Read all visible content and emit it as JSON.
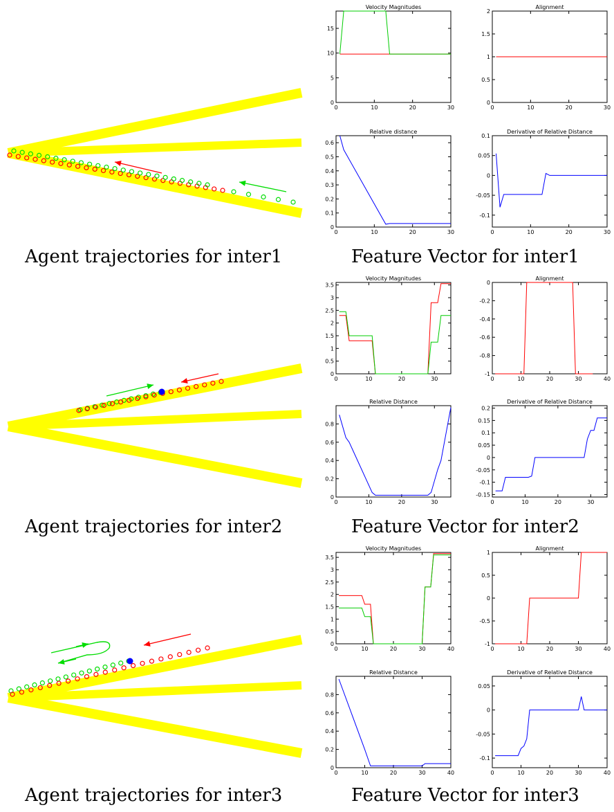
{
  "rows": [
    {
      "left_caption": "Agent trajectories for inter1",
      "right_caption": "Feature Vector for inter1",
      "scene": {
        "road_color": "#ffff00",
        "agent1_color": "#ff0000",
        "agent2_color": "#00dd00",
        "marker_color": "#0000ff"
      }
    },
    {
      "left_caption": "Agent trajectories for inter2",
      "right_caption": "Feature Vector for inter2",
      "scene": {
        "road_color": "#ffff00",
        "agent1_color": "#ff0000",
        "agent2_color": "#00dd00",
        "marker_color": "#0000ff"
      }
    },
    {
      "left_caption": "Agent trajectories for inter3",
      "right_caption": "Feature Vector for inter3",
      "scene": {
        "road_color": "#ffff00",
        "agent1_color": "#ff0000",
        "agent2_color": "#00dd00",
        "marker_color": "#0000ff"
      }
    }
  ],
  "chart_data": [
    {
      "type": "line",
      "title": "Velocity Magnitudes",
      "xlim": [
        0,
        30
      ],
      "ylim": [
        0,
        18.5
      ],
      "xticks": [
        0,
        10,
        20,
        30
      ],
      "yticks": [
        0,
        5,
        10,
        15
      ],
      "series": [
        {
          "color": "#ff0000",
          "x": [
            1,
            30
          ],
          "y": [
            9.8,
            9.8
          ]
        },
        {
          "color": "#00cc00",
          "x": [
            1,
            2,
            13,
            14,
            30
          ],
          "y": [
            9.8,
            18.5,
            18.5,
            9.8,
            9.8
          ]
        }
      ]
    },
    {
      "type": "line",
      "title": "Alignment",
      "xlim": [
        0,
        30
      ],
      "ylim": [
        0,
        2
      ],
      "xticks": [
        0,
        10,
        20,
        30
      ],
      "yticks": [
        0,
        0.5,
        1,
        1.5,
        2
      ],
      "series": [
        {
          "color": "#ff0000",
          "x": [
            1,
            30
          ],
          "y": [
            1,
            1
          ]
        }
      ]
    },
    {
      "type": "line",
      "title": "Relative distance",
      "xlim": [
        0,
        30
      ],
      "ylim": [
        0,
        0.65
      ],
      "xticks": [
        0,
        10,
        20,
        30
      ],
      "yticks": [
        0,
        0.1,
        0.2,
        0.3,
        0.4,
        0.5,
        0.6
      ],
      "series": [
        {
          "color": "#0000ff",
          "x": [
            1,
            2,
            13,
            14,
            30
          ],
          "y": [
            0.65,
            0.55,
            0.02,
            0.025,
            0.025
          ]
        }
      ]
    },
    {
      "type": "line",
      "title": "Derivative of Relative Distance",
      "xlim": [
        0,
        30
      ],
      "ylim": [
        -0.13,
        0.1
      ],
      "xticks": [
        0,
        10,
        20,
        30
      ],
      "yticks": [
        -0.1,
        -0.05,
        0,
        0.05,
        0.1
      ],
      "series": [
        {
          "color": "#0000ff",
          "x": [
            1,
            2,
            3,
            13,
            14,
            15,
            30
          ],
          "y": [
            0.055,
            -0.08,
            -0.048,
            -0.048,
            0.005,
            0,
            0
          ]
        }
      ]
    },
    {
      "type": "line",
      "title": "Velocity Magnitudes",
      "xlim": [
        0,
        35
      ],
      "ylim": [
        0,
        3.6
      ],
      "xticks": [
        0,
        10,
        20,
        30
      ],
      "yticks": [
        0,
        0.5,
        1,
        1.5,
        2,
        2.5,
        3,
        3.5
      ],
      "series": [
        {
          "color": "#ff0000",
          "x": [
            1,
            3,
            4,
            11,
            12,
            28,
            29,
            31,
            32,
            35
          ],
          "y": [
            2.3,
            2.3,
            1.3,
            1.3,
            0,
            0,
            2.8,
            2.8,
            3.55,
            3.55
          ]
        },
        {
          "color": "#00cc00",
          "x": [
            1,
            3,
            4,
            11,
            12,
            28,
            29,
            31,
            32,
            35
          ],
          "y": [
            2.45,
            2.45,
            1.5,
            1.5,
            0,
            0,
            1.25,
            1.25,
            2.3,
            2.3
          ]
        }
      ]
    },
    {
      "type": "line",
      "title": "Alignment",
      "xlim": [
        0,
        40
      ],
      "ylim": [
        -1,
        0
      ],
      "xticks": [
        0,
        10,
        20,
        30,
        40
      ],
      "yticks": [
        -1,
        -0.8,
        -0.6,
        -0.4,
        -0.2,
        0
      ],
      "series": [
        {
          "color": "#ff0000",
          "x": [
            1,
            11,
            12,
            28,
            29,
            35
          ],
          "y": [
            -1,
            -1,
            0,
            0,
            -1,
            -1
          ]
        }
      ]
    },
    {
      "type": "line",
      "title": "Relative Distance",
      "xlim": [
        0,
        35
      ],
      "ylim": [
        0,
        1
      ],
      "xticks": [
        0,
        10,
        20,
        30
      ],
      "yticks": [
        0,
        0.2,
        0.4,
        0.6,
        0.8
      ],
      "series": [
        {
          "color": "#0000ff",
          "x": [
            1,
            3,
            4,
            11,
            12,
            28,
            29,
            31,
            32,
            35
          ],
          "y": [
            0.9,
            0.65,
            0.6,
            0.05,
            0.02,
            0.02,
            0.05,
            0.3,
            0.4,
            0.98
          ]
        }
      ]
    },
    {
      "type": "line",
      "title": "Derivative of Relative Distance",
      "xlim": [
        0,
        35
      ],
      "ylim": [
        -0.16,
        0.21
      ],
      "xticks": [
        0,
        10,
        20,
        30
      ],
      "yticks": [
        -0.15,
        -0.1,
        -0.05,
        0,
        0.05,
        0.1,
        0.15,
        0.2
      ],
      "series": [
        {
          "color": "#0000ff",
          "x": [
            1,
            3,
            4,
            11,
            12,
            13,
            28,
            29,
            30,
            31,
            32,
            33,
            35
          ],
          "y": [
            -0.135,
            -0.135,
            -0.08,
            -0.08,
            -0.075,
            0,
            0,
            0.075,
            0.11,
            0.11,
            0.16,
            0.16,
            0.16
          ]
        }
      ]
    },
    {
      "type": "line",
      "title": "Velocity Magnitudes",
      "xlim": [
        0,
        40
      ],
      "ylim": [
        0,
        3.7
      ],
      "xticks": [
        0,
        10,
        20,
        30,
        40
      ],
      "yticks": [
        0,
        0.5,
        1,
        1.5,
        2,
        2.5,
        3,
        3.5
      ],
      "series": [
        {
          "color": "#ff0000",
          "x": [
            1,
            9,
            10,
            12,
            13,
            30,
            31,
            33,
            34,
            40
          ],
          "y": [
            1.95,
            1.95,
            1.6,
            1.6,
            0,
            0,
            2.3,
            2.3,
            3.65,
            3.65
          ]
        },
        {
          "color": "#00cc00",
          "x": [
            1,
            9,
            10,
            12,
            13,
            30,
            31,
            33,
            34,
            40
          ],
          "y": [
            1.45,
            1.45,
            1.1,
            1.1,
            0,
            0,
            2.3,
            2.3,
            3.6,
            3.6
          ]
        }
      ]
    },
    {
      "type": "line",
      "title": "Alignment",
      "xlim": [
        0,
        40
      ],
      "ylim": [
        -1,
        1
      ],
      "xticks": [
        0,
        10,
        20,
        30,
        40
      ],
      "yticks": [
        -1,
        -0.5,
        0,
        0.5,
        1
      ],
      "series": [
        {
          "color": "#ff0000",
          "x": [
            1,
            12,
            13,
            30,
            31,
            40
          ],
          "y": [
            -1,
            -1,
            0,
            0,
            1,
            1
          ]
        }
      ]
    },
    {
      "type": "line",
      "title": "Relative Distance",
      "xlim": [
        0,
        40
      ],
      "ylim": [
        0,
        1
      ],
      "xticks": [
        0,
        10,
        20,
        30,
        40
      ],
      "yticks": [
        0,
        0.2,
        0.4,
        0.6,
        0.8
      ],
      "series": [
        {
          "color": "#0000ff",
          "x": [
            1,
            10,
            12,
            13,
            30,
            31,
            40
          ],
          "y": [
            0.97,
            0.2,
            0.02,
            0.02,
            0.02,
            0.045,
            0.045
          ]
        }
      ]
    },
    {
      "type": "line",
      "title": "Derivative of Relative Distance",
      "xlim": [
        0,
        40
      ],
      "ylim": [
        -0.12,
        0.07
      ],
      "xticks": [
        0,
        10,
        20,
        30,
        40
      ],
      "yticks": [
        -0.1,
        -0.05,
        0,
        0.05
      ],
      "series": [
        {
          "color": "#0000ff",
          "x": [
            1,
            9,
            10,
            11,
            12,
            13,
            30,
            31,
            32,
            40
          ],
          "y": [
            -0.095,
            -0.095,
            -0.08,
            -0.075,
            -0.06,
            0,
            0,
            0.028,
            0,
            0
          ]
        }
      ]
    }
  ]
}
